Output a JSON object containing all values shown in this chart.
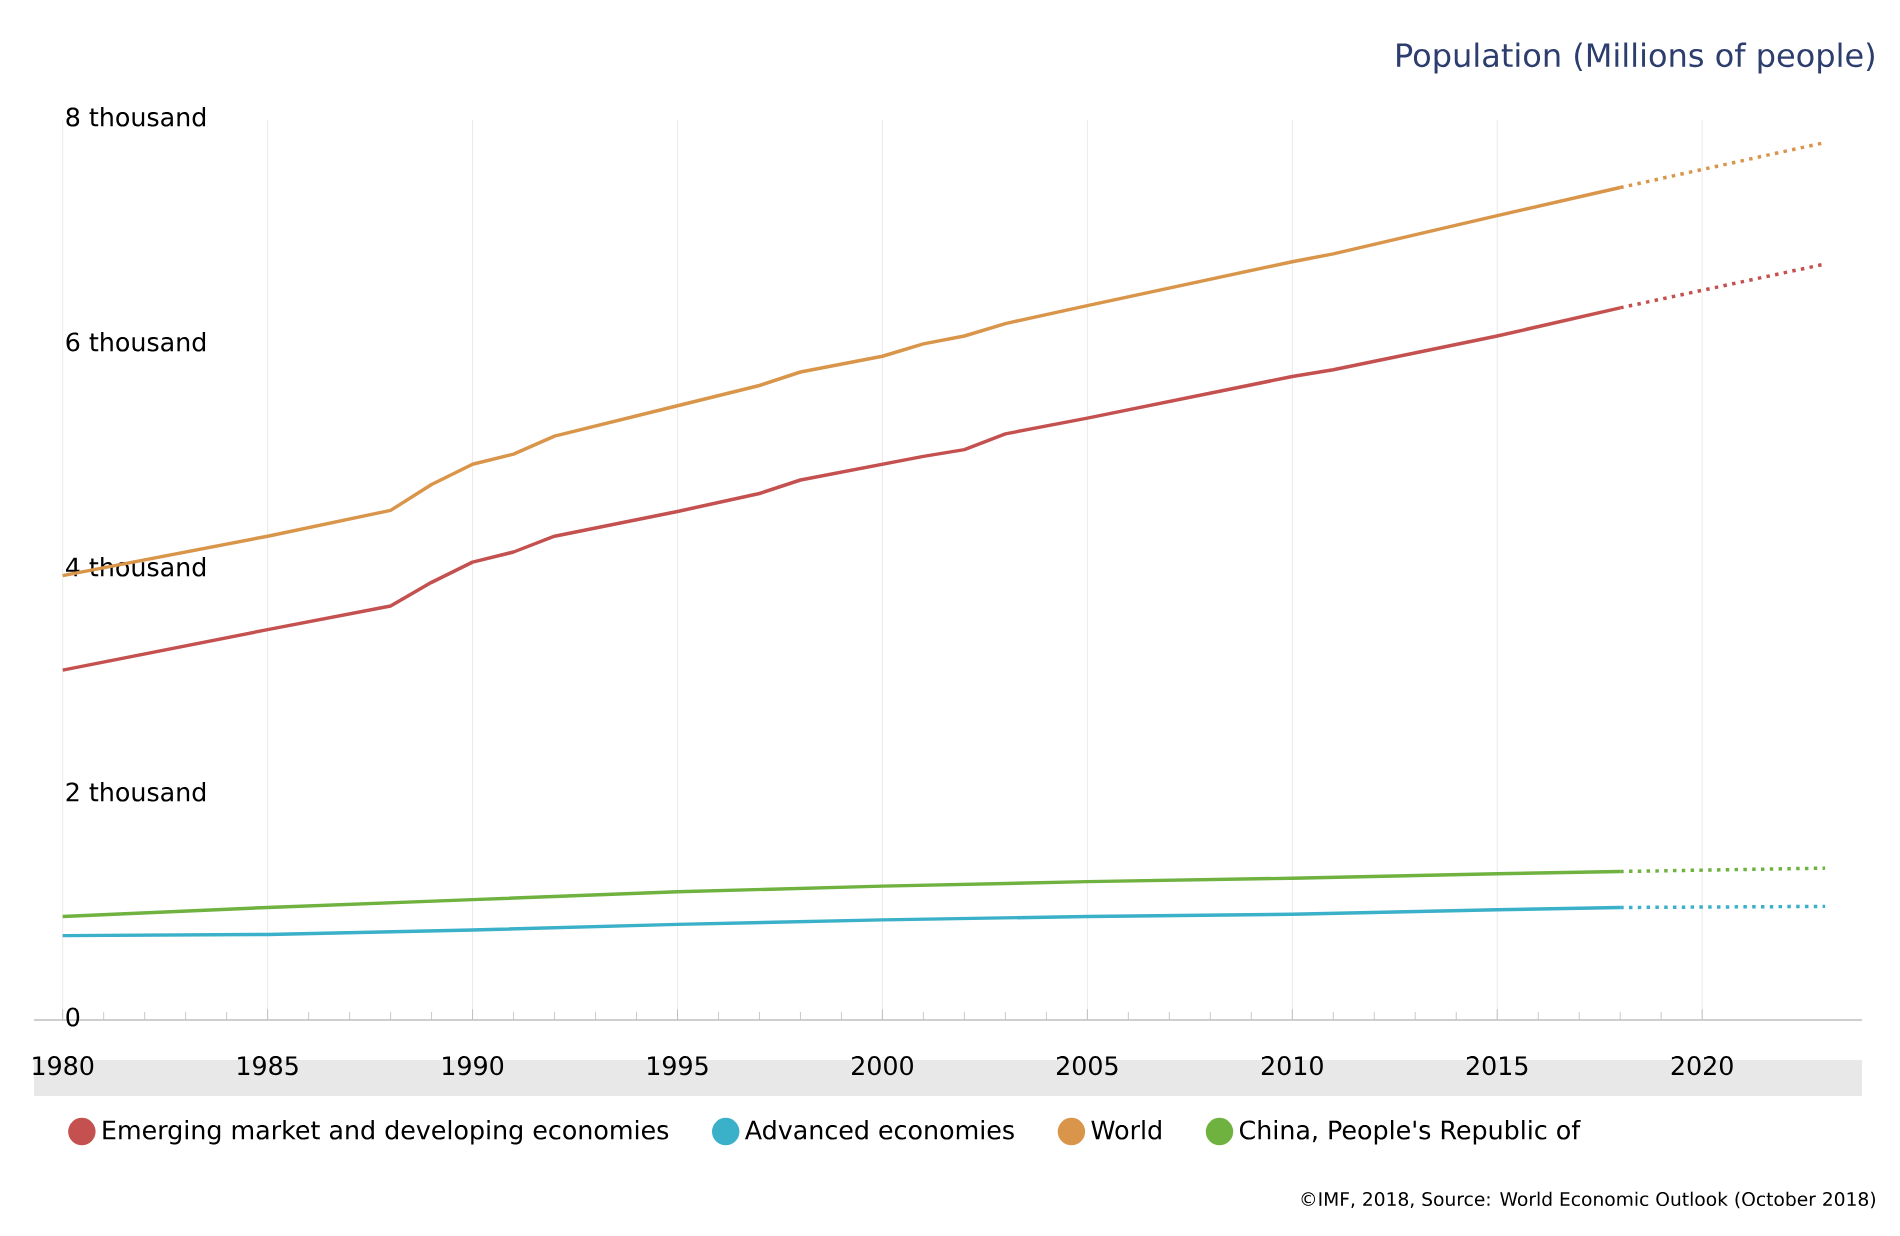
{
  "chart_data": {
    "type": "line",
    "title": "Population (Millions of people)",
    "annotations": [
      "©IMF, 2018, Source: World Economic Outlook (October 2018)"
    ],
    "xlim": [
      1979.3,
      2023.9
    ],
    "xticks": [
      1980,
      1985,
      1990,
      1995,
      2000,
      2005,
      2010,
      2015,
      2020
    ],
    "ylim": [
      0,
      8000
    ],
    "yticks": [
      {
        "value": 0,
        "label": "0"
      },
      {
        "value": 2000,
        "label": "2 thousand"
      },
      {
        "value": 4000,
        "label": "4 thousand"
      },
      {
        "value": 6000,
        "label": "6 thousand"
      },
      {
        "value": 8000,
        "label": "8 thousand"
      }
    ],
    "grid": "x",
    "legend": "bottom",
    "marker": "none",
    "line_style": "solid",
    "series": [
      {
        "name": "Emerging market and developing economies",
        "color": "#c4514f",
        "x": [
          1980,
          1985,
          1988,
          1989,
          1990,
          1991,
          1992,
          1995,
          1997,
          1998,
          2000,
          2001,
          2002,
          2003,
          2005,
          2010,
          2011,
          2015,
          2018
        ],
        "values": [
          3110,
          3470,
          3680,
          3890,
          4070,
          4160,
          4300,
          4520,
          4680,
          4800,
          4940,
          5010,
          5070,
          5210,
          5350,
          5720,
          5780,
          6080,
          6330
        ]
      },
      {
        "name": "Advanced economies",
        "color": "#3bb0c9",
        "x": [
          1980,
          1985,
          1990,
          1995,
          2000,
          2005,
          2010,
          2015,
          2018
        ],
        "values": [
          750,
          760,
          800,
          850,
          890,
          920,
          940,
          980,
          1000
        ]
      },
      {
        "name": "World",
        "color": "#d9954a",
        "x": [
          1980,
          1985,
          1988,
          1989,
          1990,
          1991,
          1992,
          1995,
          1997,
          1998,
          2000,
          2001,
          2002,
          2003,
          2005,
          2010,
          2011,
          2015,
          2018
        ],
        "values": [
          3950,
          4300,
          4530,
          4760,
          4940,
          5030,
          5190,
          5460,
          5640,
          5760,
          5900,
          6010,
          6080,
          6190,
          6350,
          6740,
          6810,
          7150,
          7400
        ]
      },
      {
        "name": "China, People's Republic of",
        "color": "#6fb23f",
        "x": [
          1980,
          1985,
          1990,
          1995,
          2000,
          2005,
          2010,
          2015,
          2018
        ],
        "values": [
          920,
          1000,
          1070,
          1140,
          1190,
          1230,
          1260,
          1300,
          1320
        ]
      },
      {
        "color": "#c4514f",
        "line_style": "dotted",
        "x": [
          2018,
          2023
        ],
        "values": [
          6330,
          6720
        ]
      },
      {
        "color": "#3bb0c9",
        "line_style": "dotted",
        "x": [
          2018,
          2023
        ],
        "values": [
          1000,
          1010
        ]
      },
      {
        "color": "#d9954a",
        "line_style": "dotted",
        "x": [
          2018,
          2023
        ],
        "values": [
          7400,
          7800
        ]
      },
      {
        "color": "#6fb23f",
        "line_style": "dotted",
        "x": [
          2018,
          2023
        ],
        "values": [
          1320,
          1350
        ]
      }
    ]
  }
}
